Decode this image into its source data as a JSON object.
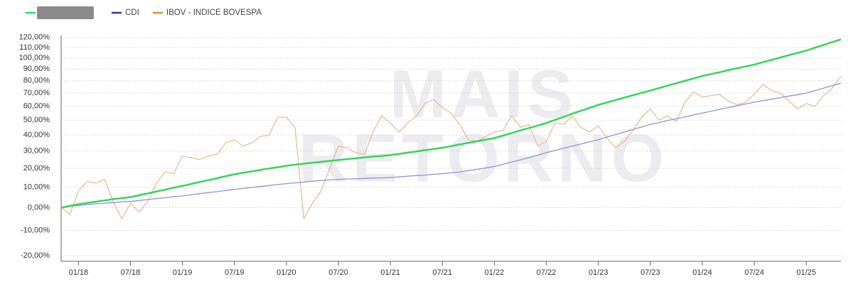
{
  "chart_data": {
    "type": "line",
    "watermark": [
      "MAIS",
      "RETORNO"
    ],
    "log_scale": true,
    "grid": true,
    "legend": "top-left",
    "ylim": [
      -22,
      122
    ],
    "yticks": [
      {
        "value": -20,
        "label": "-20,00%"
      },
      {
        "value": -10,
        "label": "-10,00%"
      },
      {
        "value": 0,
        "label": "0,00%"
      },
      {
        "value": 10,
        "label": "10,00%"
      },
      {
        "value": 20,
        "label": "20,00%"
      },
      {
        "value": 30,
        "label": "30,00%"
      },
      {
        "value": 40,
        "label": "40,00%"
      },
      {
        "value": 50,
        "label": "50,00%"
      },
      {
        "value": 60,
        "label": "60,00%"
      },
      {
        "value": 70,
        "label": "70,00%"
      },
      {
        "value": 80,
        "label": "80,00%"
      },
      {
        "value": 90,
        "label": "90,00%"
      },
      {
        "value": 100,
        "label": "100,00%"
      },
      {
        "value": 110,
        "label": "110,00%"
      },
      {
        "value": 120,
        "label": "120,00%"
      }
    ],
    "x": [
      "11/17",
      "12/17",
      "01/18",
      "02/18",
      "03/18",
      "04/18",
      "05/18",
      "06/18",
      "07/18",
      "08/18",
      "09/18",
      "10/18",
      "11/18",
      "12/18",
      "01/19",
      "02/19",
      "03/19",
      "04/19",
      "05/19",
      "06/19",
      "07/19",
      "08/19",
      "09/19",
      "10/19",
      "11/19",
      "12/19",
      "01/20",
      "02/20",
      "03/20",
      "04/20",
      "05/20",
      "06/20",
      "07/20",
      "08/20",
      "09/20",
      "10/20",
      "11/20",
      "12/20",
      "01/21",
      "02/21",
      "03/21",
      "04/21",
      "05/21",
      "06/21",
      "07/21",
      "08/21",
      "09/21",
      "10/21",
      "11/21",
      "12/21",
      "01/22",
      "02/22",
      "03/22",
      "04/22",
      "05/22",
      "06/22",
      "07/22",
      "08/22",
      "09/22",
      "10/22",
      "11/22",
      "12/22",
      "01/23",
      "02/23",
      "03/23",
      "04/23",
      "05/23",
      "06/23",
      "07/23",
      "08/23",
      "09/23",
      "10/23",
      "11/23",
      "12/23",
      "01/24",
      "02/24",
      "03/24",
      "04/24",
      "05/24",
      "06/24",
      "07/24",
      "08/24",
      "09/24",
      "10/24",
      "11/24",
      "12/24",
      "01/25",
      "02/25",
      "03/25",
      "04/25",
      "05/25"
    ],
    "xticks": [
      "01/18",
      "07/18",
      "01/19",
      "07/19",
      "01/20",
      "07/20",
      "01/21",
      "07/21",
      "01/22",
      "07/22",
      "01/23",
      "07/23",
      "01/24",
      "07/24",
      "01/25"
    ],
    "series": [
      {
        "color": "#33d65c",
        "width": 2.5,
        "values": [
          0,
          0.8,
          1.6,
          2.2,
          2.8,
          3.4,
          4,
          4.5,
          5,
          5.9,
          6.8,
          7.8,
          8.7,
          9.7,
          10.6,
          11.6,
          12.6,
          13.6,
          14.6,
          15.7,
          16.7,
          17.5,
          18.3,
          19.1,
          19.9,
          20.6,
          21.4,
          22,
          22.6,
          23.1,
          23.6,
          24.2,
          24.7,
          25.2,
          25.7,
          26.2,
          26.7,
          27.1,
          27.6,
          28.3,
          29,
          29.7,
          30.5,
          31.2,
          32,
          33,
          34,
          35,
          36,
          37,
          38,
          39.6,
          41.3,
          43,
          44.6,
          46.3,
          48,
          50.2,
          52.3,
          54.5,
          56.7,
          58.8,
          61,
          62.8,
          64.7,
          66.5,
          68.3,
          70.2,
          72,
          74,
          76,
          78,
          80,
          82,
          84,
          85.7,
          87.3,
          89,
          90.7,
          92.3,
          94,
          96.2,
          98.3,
          100.5,
          102.7,
          104.8,
          107,
          109.8,
          112.5,
          115.3,
          118
        ]
      },
      {
        "name": "CDI",
        "color": "#9090e0",
        "legend_color": "#2a35b8",
        "width": 1.3,
        "values": [
          0,
          0.5,
          1,
          1.4,
          1.8,
          2.1,
          2.4,
          2.7,
          2.9,
          3.4,
          3.8,
          4.3,
          4.7,
          5.2,
          5.6,
          6.1,
          6.7,
          7.2,
          7.7,
          8.3,
          8.8,
          9.3,
          9.8,
          10.3,
          10.8,
          11.3,
          11.8,
          12.2,
          12.6,
          13,
          13.4,
          13.7,
          14,
          14.2,
          14.3,
          14.5,
          14.7,
          14.8,
          15,
          15.3,
          15.7,
          16,
          16.3,
          16.7,
          17,
          17.5,
          18,
          18.7,
          19.4,
          20.2,
          21,
          22.2,
          23.5,
          24.8,
          26.1,
          27.5,
          29,
          30.3,
          31.7,
          33,
          34.3,
          35.7,
          37,
          38.7,
          40.3,
          42,
          43.7,
          45.3,
          47,
          48.3,
          49.7,
          51,
          52.3,
          53.7,
          55,
          56.3,
          57.7,
          59,
          60.3,
          61.7,
          63,
          64.2,
          65.3,
          66.5,
          67.7,
          68.8,
          70,
          72,
          74,
          76,
          78
        ]
      },
      {
        "name": "IBOV - INDICE BOVESPA",
        "color": "#e8b98a",
        "legend_color": "#d98c3a",
        "width": 1.2,
        "values": [
          0,
          -3,
          8,
          13,
          12,
          14,
          3,
          -5,
          2,
          -2,
          3,
          12,
          18,
          17,
          27,
          26,
          25,
          27,
          28,
          35,
          37,
          33,
          35,
          39,
          40,
          52,
          52,
          45,
          -5,
          2,
          8,
          20,
          33,
          32,
          29,
          28,
          42,
          53,
          48,
          42,
          48,
          53,
          62,
          65,
          59,
          55,
          47,
          37,
          36,
          39,
          42,
          43,
          53,
          45,
          47,
          33,
          36,
          48,
          47,
          53,
          45,
          42,
          46,
          38,
          32,
          36,
          43,
          52,
          58,
          50,
          53,
          49,
          63,
          71,
          67,
          68,
          69,
          64,
          61,
          63,
          69,
          77,
          72,
          70,
          64,
          58,
          62,
          60,
          68,
          74,
          84
        ]
      }
    ]
  }
}
